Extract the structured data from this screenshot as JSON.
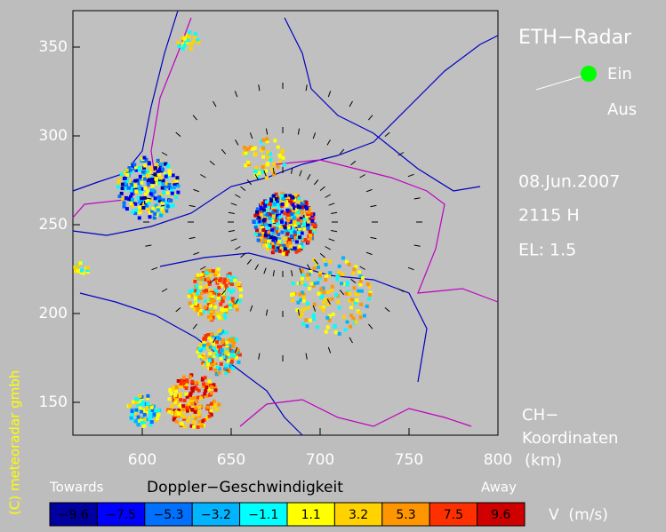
{
  "header": {
    "title": "ETH−Radar",
    "on": "Ein",
    "off": "Aus",
    "date": "08.Jun.2007",
    "time": "2115 H",
    "elevation": "EL: 1.5",
    "coords": [
      "CH−",
      "Koordinaten",
      "(km)"
    ],
    "copyright": "(C) meteoradar gmbh"
  },
  "map": {
    "xlim": [
      561,
      800
    ],
    "ylim": [
      131.5,
      370.5
    ],
    "xticks": [
      600,
      650,
      700,
      750,
      800
    ],
    "yticks": [
      150,
      200,
      250,
      300,
      350
    ]
  },
  "legend": {
    "towards": "Towards",
    "title": "Doppler−Geschwindigkeit",
    "away": "Away",
    "unit": "V  (m/s)",
    "classes": [
      {
        "label": "−9.6",
        "color": "#0000a0"
      },
      {
        "label": "−7.5",
        "color": "#0000ff"
      },
      {
        "label": "−5.3",
        "color": "#0070ff"
      },
      {
        "label": "−3.2",
        "color": "#00b4ff"
      },
      {
        "label": "−1.1",
        "color": "#00ffff"
      },
      {
        "label": "1.1",
        "color": "#ffff00"
      },
      {
        "label": "3.2",
        "color": "#ffd200"
      },
      {
        "label": "5.3",
        "color": "#ff9600"
      },
      {
        "label": "7.5",
        "color": "#ff3000"
      },
      {
        "label": "9.6",
        "color": "#d00000"
      }
    ]
  }
}
